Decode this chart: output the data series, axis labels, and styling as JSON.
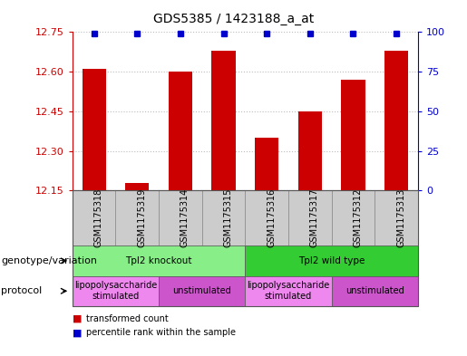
{
  "title": "GDS5385 / 1423188_a_at",
  "samples": [
    "GSM1175318",
    "GSM1175319",
    "GSM1175314",
    "GSM1175315",
    "GSM1175316",
    "GSM1175317",
    "GSM1175312",
    "GSM1175313"
  ],
  "bar_values": [
    12.61,
    12.18,
    12.6,
    12.68,
    12.35,
    12.45,
    12.57,
    12.68
  ],
  "percentile_values": [
    99,
    99,
    99,
    99,
    99,
    99,
    99,
    99
  ],
  "ylim_left": [
    12.15,
    12.75
  ],
  "ylim_right": [
    0,
    100
  ],
  "yticks_left": [
    12.15,
    12.3,
    12.45,
    12.6,
    12.75
  ],
  "yticks_right": [
    0,
    25,
    50,
    75,
    100
  ],
  "bar_color": "#cc0000",
  "percentile_color": "#0000cc",
  "background_color": "#ffffff",
  "grid_color": "#bbbbbb",
  "sample_box_color": "#cccccc",
  "genotype_groups": [
    {
      "label": "Tpl2 knockout",
      "start": 0,
      "end": 4,
      "color": "#88ee88"
    },
    {
      "label": "Tpl2 wild type",
      "start": 4,
      "end": 8,
      "color": "#33cc33"
    }
  ],
  "protocol_groups": [
    {
      "label": "lipopolysaccharide\nstimulated",
      "start": 0,
      "end": 2,
      "color": "#ee88ee"
    },
    {
      "label": "unstimulated",
      "start": 2,
      "end": 4,
      "color": "#cc55cc"
    },
    {
      "label": "lipopolysaccharide\nstimulated",
      "start": 4,
      "end": 6,
      "color": "#ee88ee"
    },
    {
      "label": "unstimulated",
      "start": 6,
      "end": 8,
      "color": "#cc55cc"
    }
  ],
  "left_label_color": "#cc0000",
  "right_label_color": "#0000cc",
  "title_fontsize": 10,
  "tick_fontsize": 8,
  "sample_fontsize": 7,
  "table_fontsize": 7.5,
  "legend_fontsize": 8,
  "row_label_fontsize": 8
}
